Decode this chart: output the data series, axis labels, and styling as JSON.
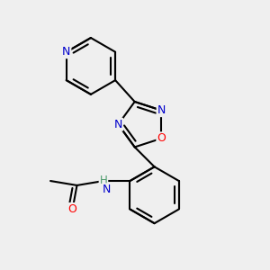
{
  "bg_color": "#efefef",
  "bond_color": "#000000",
  "bond_width": 1.5,
  "atom_colors": {
    "N": "#0000cc",
    "O": "#ff0000",
    "C": "#000000",
    "H": "#4a9a6a"
  },
  "font_size": 9,
  "figsize": [
    3.0,
    3.0
  ],
  "dpi": 100
}
